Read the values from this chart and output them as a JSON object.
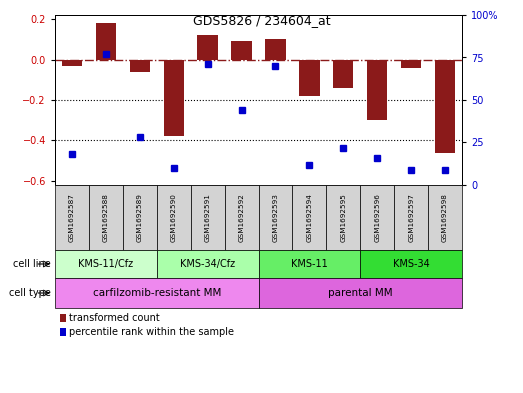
{
  "title": "GDS5826 / 234604_at",
  "samples": [
    "GSM1692587",
    "GSM1692588",
    "GSM1692589",
    "GSM1692590",
    "GSM1692591",
    "GSM1692592",
    "GSM1692593",
    "GSM1692594",
    "GSM1692595",
    "GSM1692596",
    "GSM1692597",
    "GSM1692598"
  ],
  "transformed_count": [
    -0.03,
    0.18,
    -0.06,
    -0.38,
    0.12,
    0.09,
    0.1,
    -0.18,
    -0.14,
    -0.3,
    -0.04,
    -0.46
  ],
  "percentile_rank": [
    18,
    77,
    28,
    10,
    71,
    44,
    70,
    12,
    22,
    16,
    9,
    9
  ],
  "bar_color": "#8B1A1A",
  "dot_color": "#0000CD",
  "hline_color": "#8B1A1A",
  "dotted_line_color": "#000000",
  "ylim_left": [
    -0.62,
    0.22
  ],
  "ylim_right": [
    0,
    100
  ],
  "yticks_left": [
    -0.6,
    -0.4,
    -0.2,
    0.0,
    0.2
  ],
  "yticks_right": [
    0,
    25,
    50,
    75,
    100
  ],
  "ytick_labels_right": [
    "0",
    "25",
    "50",
    "75",
    "100%"
  ],
  "cell_line_groups": [
    {
      "label": "KMS-11/Cfz",
      "start": 0,
      "end": 3,
      "color": "#ccffcc"
    },
    {
      "label": "KMS-34/Cfz",
      "start": 3,
      "end": 6,
      "color": "#aaffaa"
    },
    {
      "label": "KMS-11",
      "start": 6,
      "end": 9,
      "color": "#66ee66"
    },
    {
      "label": "KMS-34",
      "start": 9,
      "end": 12,
      "color": "#33dd33"
    }
  ],
  "cell_type_groups": [
    {
      "label": "carfilzomib-resistant MM",
      "start": 0,
      "end": 6,
      "color": "#ee88ee"
    },
    {
      "label": "parental MM",
      "start": 6,
      "end": 12,
      "color": "#dd66dd"
    }
  ],
  "cell_line_row_label": "cell line",
  "cell_type_row_label": "cell type",
  "legend_items": [
    {
      "label": "transformed count",
      "color": "#8B1A1A"
    },
    {
      "label": "percentile rank within the sample",
      "color": "#0000CD"
    }
  ],
  "background_color": "#ffffff",
  "sample_bg_color": "#d3d3d3",
  "bar_width": 0.6
}
